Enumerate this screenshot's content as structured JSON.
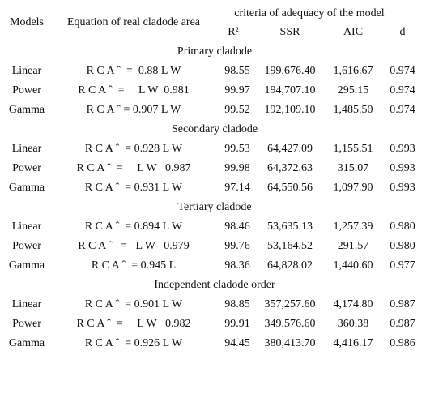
{
  "header": {
    "models": "Models",
    "equation": "Equation of real cladode area",
    "criteria": "criteria of adequacy of the model",
    "columns": [
      "R²",
      "SSR",
      "AIC",
      "d"
    ]
  },
  "sections": [
    {
      "title": "Primary cladode",
      "rows": [
        [
          "Linear",
          "R C A ˆ  =  0.88 L W",
          "98.55",
          "199,676.40",
          "1,616.67",
          "0.974"
        ],
        [
          "Power",
          "R C A ˆ  =     L W  0.981",
          "99.97",
          "194,707.10",
          "295.15",
          "0.974"
        ],
        [
          "Gamma",
          "R C A ˆ = 0.907 L W",
          "99.52",
          "192,109.10",
          "1,485.50",
          "0.974"
        ]
      ]
    },
    {
      "title": "Secondary cladode",
      "rows": [
        [
          "Linear",
          "R C A ˆ  = 0.928 L W",
          "99.53",
          "64,427.09",
          "1,155.51",
          "0.993"
        ],
        [
          "Power",
          "R C A ˆ  =     L W   0.987",
          "99.98",
          "64,372.63",
          "315.07",
          "0.993"
        ],
        [
          "Gamma",
          "R C A ˆ  = 0.931 L W",
          "97.14",
          "64,550.56",
          "1,097.90",
          "0.993"
        ]
      ]
    },
    {
      "title": "Tertiary cladode",
      "rows": [
        [
          "Linear",
          "R C A ˆ  = 0.894 L W",
          "98.46",
          "53,635.13",
          "1,257.39",
          "0.980"
        ],
        [
          "Power",
          "R C A ˆ   =   L W   0.979",
          "99.76",
          "53,164.52",
          "291.57",
          "0.980"
        ],
        [
          "Gamma",
          "R C A ˆ  = 0.945 L",
          "98.36",
          "64,828.02",
          "1,440.60",
          "0.977"
        ]
      ]
    },
    {
      "title": "Independent cladode order",
      "rows": [
        [
          "Linear",
          "R C A ˆ  = 0.901 L W",
          "98.85",
          "357,257.60",
          "4,174.80",
          "0.987"
        ],
        [
          "Power",
          "R C A ˆ  =     L W   0.982",
          "99.91",
          "349,576.60",
          "360.38",
          "0.987"
        ],
        [
          "Gamma",
          "R C A ˆ  = 0.926 L W",
          "94.45",
          "380,413.70",
          "4,416.17",
          "0.986"
        ]
      ]
    }
  ]
}
